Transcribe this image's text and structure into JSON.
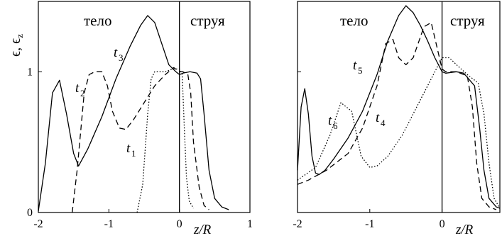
{
  "chart_data": [
    {
      "type": "line",
      "title": "",
      "xlabel": "z/R",
      "ylabel": "ϵ,  ϵ",
      "ylabel_sub": "z",
      "xlim": [
        -2.0,
        1.0
      ],
      "ylim": [
        0,
        1.5
      ],
      "x_ticks": [
        -2,
        -1,
        0,
        1
      ],
      "x_tick_labels": [
        "-2",
        "-1",
        "0",
        "1"
      ],
      "y_ticks": [
        0,
        1
      ],
      "y_tick_labels": [
        "0",
        "1"
      ],
      "grid": false,
      "region_labels": [
        "тело",
        "струя"
      ],
      "series": [
        {
          "name": "t3",
          "style": "solid",
          "x": [
            -2.0,
            -1.9,
            -1.8,
            -1.7,
            -1.6,
            -1.5,
            -1.43,
            -1.3,
            -1.1,
            -0.9,
            -0.7,
            -0.55,
            -0.45,
            -0.35,
            -0.25,
            -0.15,
            -0.05,
            0.0,
            0.05,
            0.15,
            0.25,
            0.3,
            0.35,
            0.42,
            0.5,
            0.6,
            0.7
          ],
          "y": [
            0.01,
            0.35,
            0.85,
            0.94,
            0.7,
            0.42,
            0.33,
            0.45,
            0.68,
            0.95,
            1.18,
            1.33,
            1.4,
            1.35,
            1.2,
            1.05,
            1.0,
            0.98,
            0.99,
            1.0,
            0.99,
            0.95,
            0.7,
            0.3,
            0.1,
            0.04,
            0.02
          ]
        },
        {
          "name": "t2",
          "style": "dashed",
          "x": [
            -1.52,
            -1.45,
            -1.35,
            -1.28,
            -1.2,
            -1.1,
            -1.02,
            -0.95,
            -0.85,
            -0.76,
            -0.65,
            -0.5,
            -0.35,
            -0.2,
            -0.08,
            0.0,
            0.05,
            0.12,
            0.16,
            0.2,
            0.28,
            0.35,
            0.42
          ],
          "y": [
            0.0,
            0.3,
            0.85,
            0.98,
            1.0,
            1.0,
            0.9,
            0.72,
            0.6,
            0.59,
            0.66,
            0.78,
            0.9,
            0.98,
            1.03,
            1.0,
            1.0,
            0.98,
            0.85,
            0.5,
            0.18,
            0.05,
            0.02
          ]
        },
        {
          "name": "t1",
          "style": "dotted",
          "x": [
            -0.6,
            -0.52,
            -0.45,
            -0.4,
            -0.35,
            -0.3,
            -0.2,
            -0.1,
            0.0,
            0.04,
            0.07,
            0.1,
            0.14,
            0.2
          ],
          "y": [
            0.0,
            0.2,
            0.7,
            0.95,
            1.0,
            1.0,
            1.0,
            1.02,
            1.02,
            0.98,
            0.6,
            0.25,
            0.08,
            0.03
          ]
        }
      ]
    },
    {
      "type": "line",
      "title": "",
      "xlabel": "z/R",
      "xlim": [
        -2.0,
        0.8
      ],
      "ylim": [
        0,
        1.5
      ],
      "x_ticks": [
        -2,
        -1,
        0
      ],
      "x_tick_labels": [
        "-2",
        "-1",
        "0"
      ],
      "grid": false,
      "region_labels": [
        "тело",
        "струя"
      ],
      "series": [
        {
          "name": "t4",
          "style": "solid",
          "x": [
            -2.0,
            -1.95,
            -1.9,
            -1.85,
            -1.8,
            -1.75,
            -1.7,
            -1.62,
            -1.5,
            -1.3,
            -1.1,
            -0.9,
            -0.75,
            -0.6,
            -0.5,
            -0.4,
            -0.3,
            -0.2,
            -0.1,
            0.0,
            0.05,
            0.2,
            0.3,
            0.45,
            0.52,
            0.58,
            0.65,
            0.75,
            0.8
          ],
          "y": [
            0.3,
            0.75,
            0.88,
            0.7,
            0.4,
            0.28,
            0.27,
            0.3,
            0.38,
            0.53,
            0.72,
            0.98,
            1.22,
            1.4,
            1.47,
            1.42,
            1.33,
            1.22,
            1.1,
            1.0,
            0.99,
            1.0,
            0.99,
            0.9,
            0.6,
            0.3,
            0.1,
            0.04,
            0.03
          ]
        },
        {
          "name": "t5",
          "style": "dashed",
          "x": [
            -2.0,
            -1.85,
            -1.6,
            -1.3,
            -1.1,
            -0.9,
            -0.78,
            -0.68,
            -0.6,
            -0.5,
            -0.4,
            -0.25,
            -0.15,
            0.0,
            0.05,
            0.2,
            0.35,
            0.42,
            0.48,
            0.55,
            0.65,
            0.75
          ],
          "y": [
            0.2,
            0.23,
            0.3,
            0.42,
            0.6,
            0.9,
            1.2,
            1.23,
            1.1,
            1.05,
            1.1,
            1.32,
            1.35,
            1.02,
            1.0,
            1.0,
            0.97,
            0.75,
            0.35,
            0.1,
            0.04,
            0.02
          ]
        },
        {
          "name": "t6",
          "style": "dotted",
          "x": [
            -2.0,
            -1.75,
            -1.55,
            -1.4,
            -1.25,
            -1.12,
            -1.0,
            -0.9,
            -0.75,
            -0.55,
            -0.35,
            -0.15,
            0.0,
            0.1,
            0.2,
            0.35,
            0.5,
            0.58,
            0.65,
            0.72,
            0.8
          ],
          "y": [
            0.23,
            0.32,
            0.55,
            0.78,
            0.72,
            0.4,
            0.32,
            0.33,
            0.4,
            0.55,
            0.75,
            0.95,
            1.1,
            1.1,
            1.05,
            0.98,
            0.92,
            0.7,
            0.35,
            0.1,
            0.03
          ]
        }
      ]
    }
  ]
}
